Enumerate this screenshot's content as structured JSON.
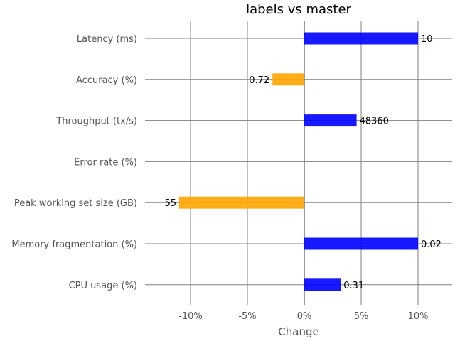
{
  "chart_data": {
    "type": "bar",
    "orientation": "horizontal",
    "title": "labels vs master",
    "xlabel": "Change",
    "ylabel": "",
    "xlim": [
      -14,
      13
    ],
    "x_ticks": [
      -10,
      -5,
      0,
      5,
      10
    ],
    "x_tick_labels": [
      "-10%",
      "-5%",
      "0%",
      "5%",
      "10%"
    ],
    "grid": true,
    "categories": [
      "Latency (ms)",
      "Accuracy (%)",
      "Throughput (tx/s)",
      "Error rate (%)",
      "Peak working set size (GB)",
      "Memory fragmentation (%)",
      "CPU usage (%)"
    ],
    "values": [
      10,
      -2.8,
      4.6,
      0,
      -11,
      10,
      3.2
    ],
    "bar_labels": [
      "10",
      "0.72",
      "48360",
      "",
      "55",
      "0.02",
      "0.31"
    ],
    "colors": {
      "increase": "#0000ff",
      "decrease": "#ffa500",
      "grid": "#808080"
    }
  }
}
